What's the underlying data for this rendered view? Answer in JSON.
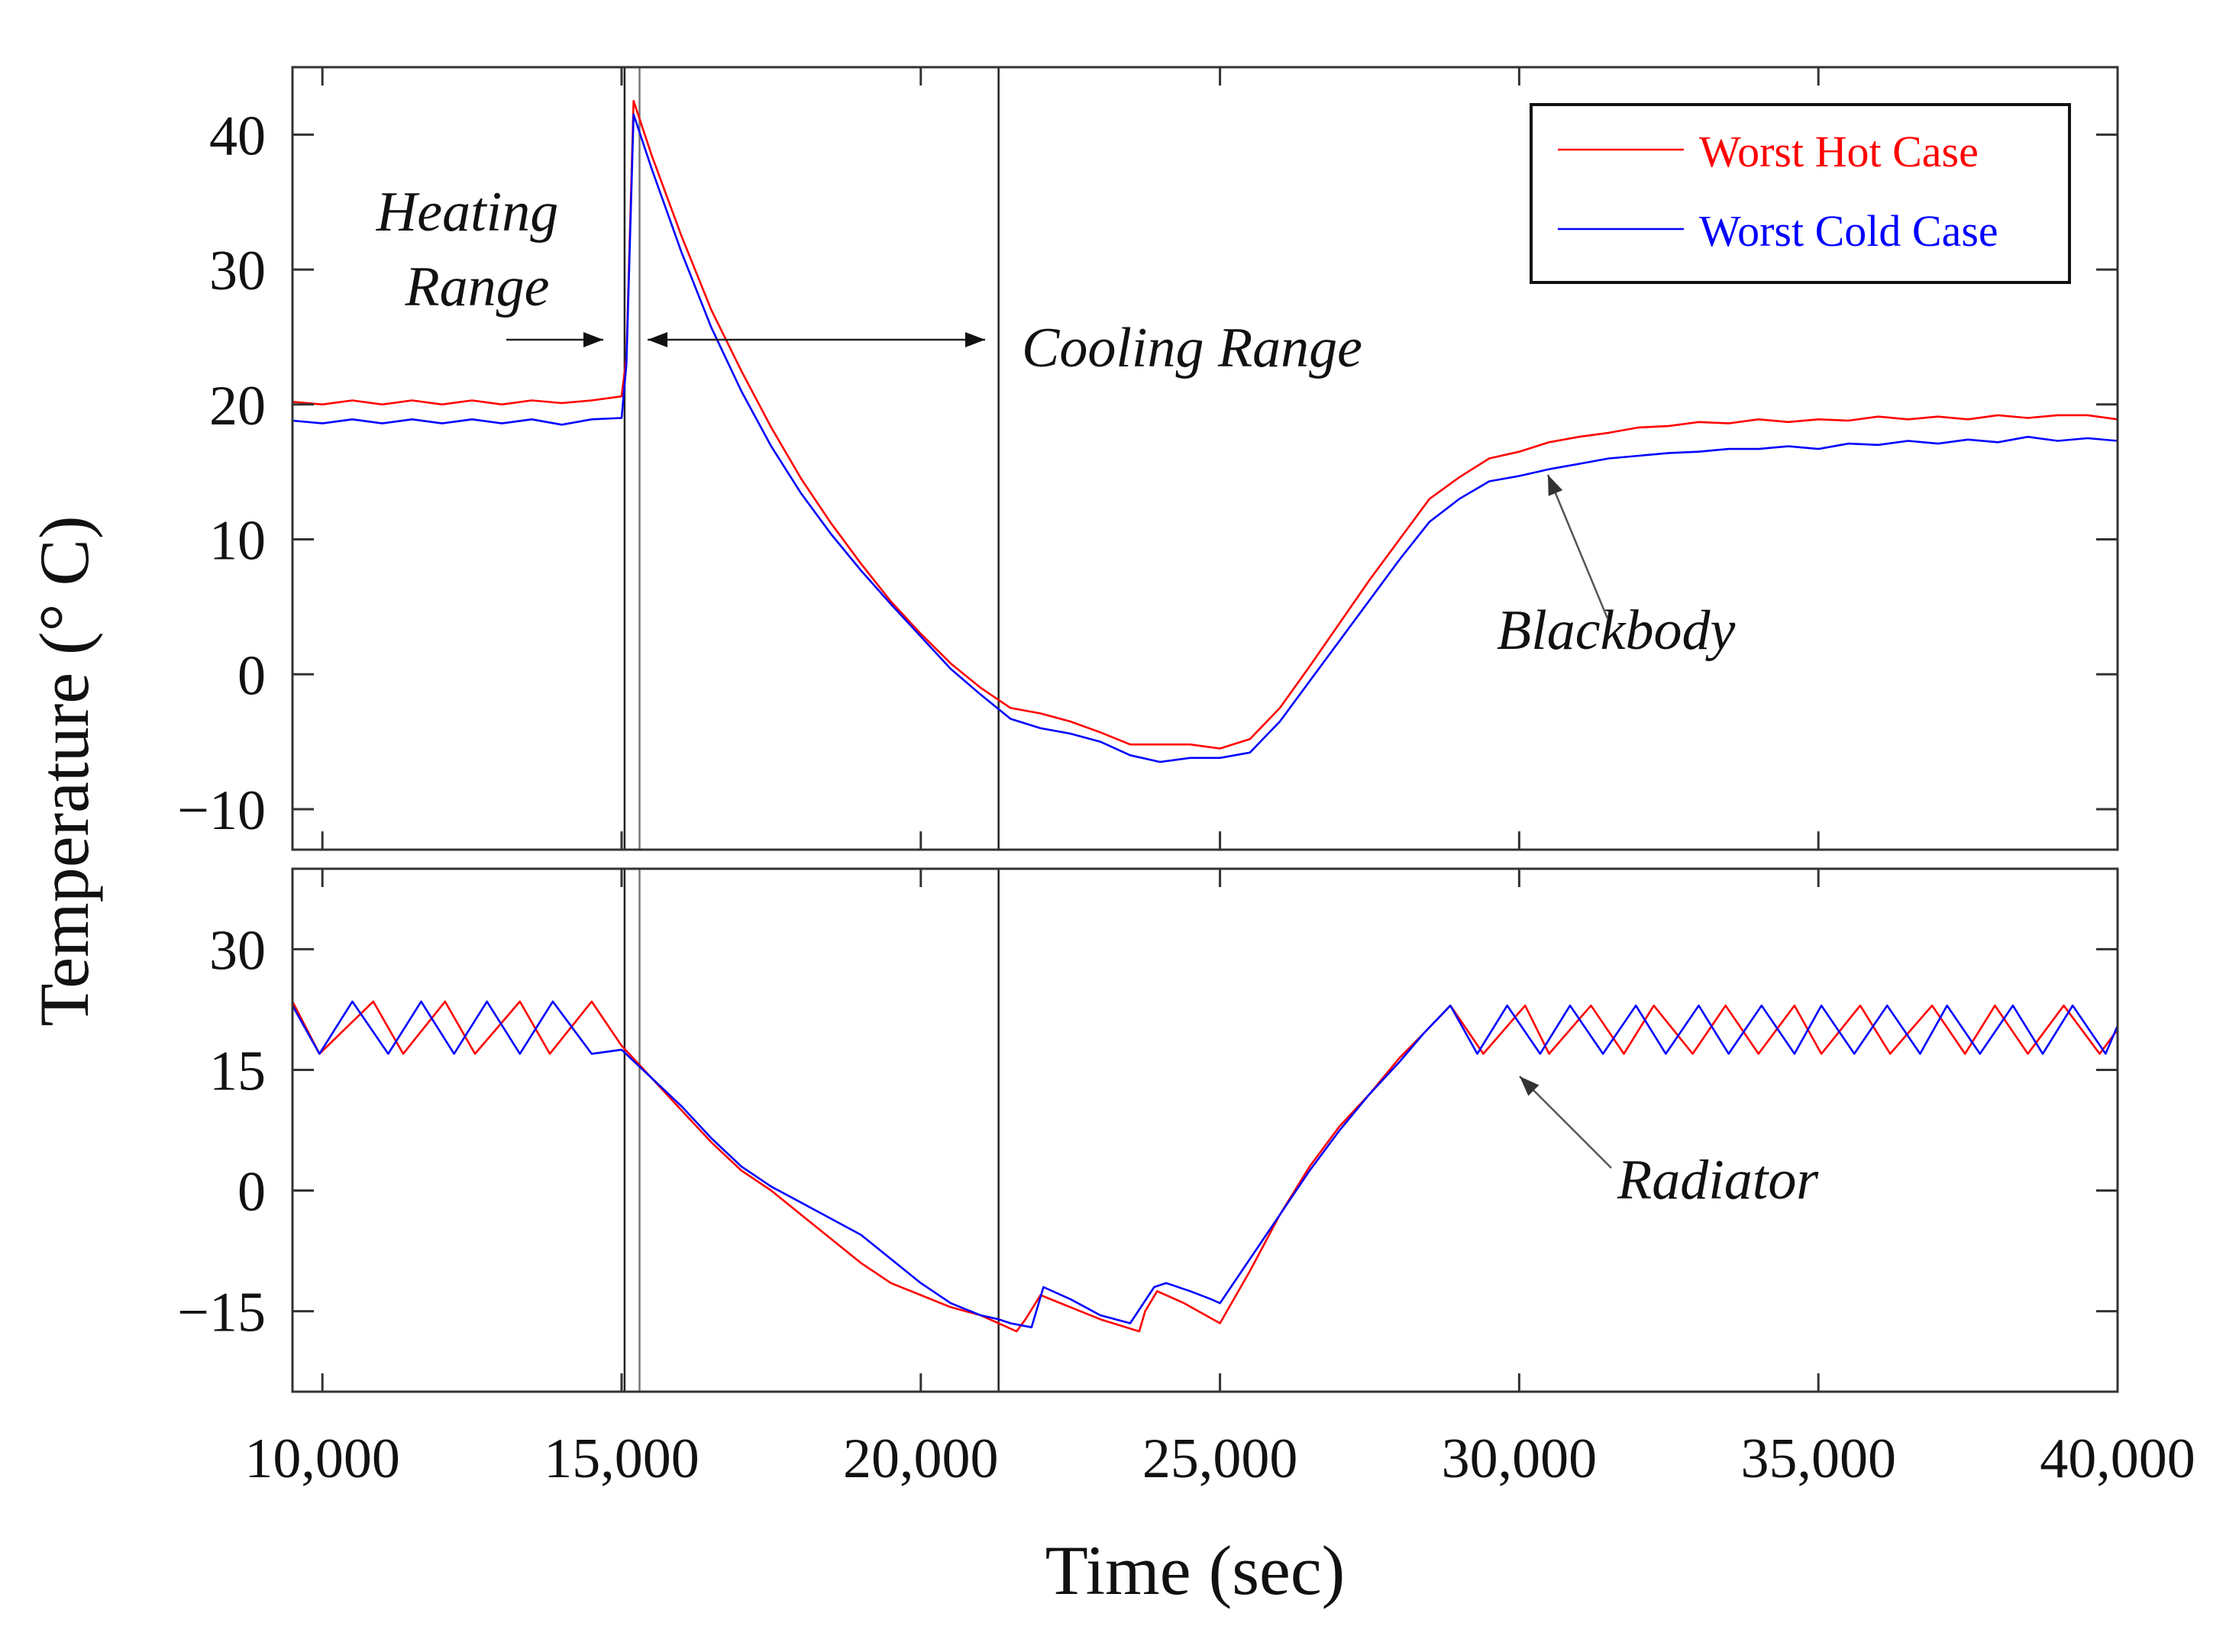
{
  "chart_data": {
    "type": "line",
    "xlabel": "Time (sec)",
    "ylabel": "Temperature (° C)",
    "x_ticks": [
      10000,
      15000,
      20000,
      25000,
      30000,
      35000,
      40000
    ],
    "x_tick_labels": [
      "10,000",
      "15,000",
      "20,000",
      "25,000",
      "30,000",
      "35,000",
      "40,000"
    ],
    "xlim": [
      9500,
      40000
    ],
    "legend": [
      {
        "name": "Worst Hot Case",
        "color": "#ff0000"
      },
      {
        "name": "Worst Cold Case",
        "color": "#0000ff"
      }
    ],
    "reference_lines_x": [
      {
        "x": 15050,
        "color": "#222222"
      },
      {
        "x": 15300,
        "color": "#777777"
      },
      {
        "x": 21300,
        "color": "#222222"
      }
    ],
    "panels": [
      {
        "name": "Blackbody",
        "ylim": [
          -13,
          45
        ],
        "y_ticks": [
          -10,
          0,
          10,
          20,
          30,
          40
        ],
        "y_tick_labels": [
          "−10",
          "0",
          "10",
          "20",
          "30",
          "40"
        ],
        "annotations": [
          {
            "text": "Heating",
            "x": 12500,
            "y": 34.5
          },
          {
            "text": "Range",
            "x": 12500,
            "y": 29
          },
          {
            "text": "Cooling Range",
            "x": 24000,
            "y": 23
          },
          {
            "text": "Blackbody",
            "x": 32300,
            "y": 3
          }
        ],
        "series": [
          {
            "name": "Worst Hot Case",
            "color": "#ff0000",
            "x": [
              9500,
              10000,
              10500,
              11000,
              11500,
              12000,
              12500,
              13000,
              13500,
              14000,
              14500,
              15000,
              15080,
              15200,
              15500,
              16000,
              16500,
              17000,
              17500,
              18000,
              18500,
              19000,
              19500,
              20000,
              20500,
              21000,
              21500,
              22000,
              22500,
              23000,
              23500,
              24000,
              24500,
              25000,
              25500,
              26000,
              26500,
              27000,
              27500,
              28000,
              28500,
              29000,
              29500,
              30000,
              30500,
              31000,
              31500,
              32000,
              32500,
              33000,
              33500,
              34000,
              34500,
              35000,
              35500,
              36000,
              36500,
              37000,
              37500,
              38000,
              38500,
              39000,
              39500,
              40000
            ],
            "values": [
              20.2,
              20.0,
              20.3,
              20.0,
              20.3,
              20.0,
              20.3,
              20.0,
              20.3,
              20.1,
              20.3,
              20.6,
              23.5,
              42.5,
              38.5,
              32.5,
              27.0,
              22.5,
              18.3,
              14.5,
              11.2,
              8.2,
              5.4,
              3.0,
              0.8,
              -1.0,
              -2.5,
              -2.9,
              -3.5,
              -4.3,
              -5.2,
              -5.2,
              -5.2,
              -5.5,
              -4.8,
              -2.5,
              0.6,
              3.8,
              7.0,
              10.0,
              13.0,
              14.6,
              16.0,
              16.5,
              17.2,
              17.6,
              17.9,
              18.3,
              18.4,
              18.7,
              18.6,
              18.9,
              18.7,
              18.9,
              18.8,
              19.1,
              18.9,
              19.1,
              18.9,
              19.2,
              19.0,
              19.2,
              19.2,
              18.9
            ]
          },
          {
            "name": "Worst Cold Case",
            "color": "#0000ff",
            "x": [
              9500,
              10000,
              10500,
              11000,
              11500,
              12000,
              12500,
              13000,
              13500,
              14000,
              14500,
              15000,
              15080,
              15200,
              15500,
              16000,
              16500,
              17000,
              17500,
              18000,
              18500,
              19000,
              19500,
              20000,
              20500,
              21000,
              21500,
              22000,
              22500,
              23000,
              23500,
              24000,
              24500,
              25000,
              25500,
              26000,
              26500,
              27000,
              27500,
              28000,
              28500,
              29000,
              29500,
              30000,
              30500,
              31000,
              31500,
              32000,
              32500,
              33000,
              33500,
              34000,
              34500,
              35000,
              35500,
              36000,
              36500,
              37000,
              37500,
              38000,
              38500,
              39000,
              39500,
              40000
            ],
            "values": [
              18.8,
              18.6,
              18.9,
              18.6,
              18.9,
              18.6,
              18.9,
              18.6,
              18.9,
              18.5,
              18.9,
              19.0,
              23.0,
              41.5,
              37.5,
              31.3,
              25.7,
              21.0,
              16.9,
              13.4,
              10.4,
              7.7,
              5.2,
              2.8,
              0.4,
              -1.5,
              -3.3,
              -4.0,
              -4.4,
              -5.0,
              -6.0,
              -6.5,
              -6.2,
              -6.2,
              -5.8,
              -3.5,
              -0.5,
              2.5,
              5.5,
              8.5,
              11.3,
              13.0,
              14.3,
              14.7,
              15.2,
              15.6,
              16.0,
              16.2,
              16.4,
              16.5,
              16.7,
              16.7,
              16.9,
              16.7,
              17.1,
              17.0,
              17.3,
              17.1,
              17.4,
              17.2,
              17.6,
              17.3,
              17.5,
              17.3
            ]
          }
        ]
      },
      {
        "name": "Radiator",
        "ylim": [
          -25,
          40
        ],
        "y_ticks": [
          -15,
          0,
          15,
          30
        ],
        "y_tick_labels": [
          "−15",
          "0",
          "15",
          "30"
        ],
        "annotations": [
          {
            "text": "Radiator",
            "x": 33100,
            "y": 1
          }
        ],
        "series": [
          {
            "name": "Worst Hot Case",
            "color": "#ff0000",
            "x": [
              9500,
              9950,
              10850,
              11350,
              12050,
              12550,
              13300,
              13800,
              14500,
              15000,
              15500,
              16000,
              16500,
              17000,
              17500,
              18000,
              18500,
              19000,
              19500,
              20000,
              20500,
              21000,
              21300,
              21600,
              21750,
              22000,
              22500,
              23000,
              23650,
              23750,
              23950,
              24400,
              25000,
              25500,
              26000,
              26500,
              27000,
              27500,
              28000,
              28400,
              28850,
              29400,
              30100,
              30500,
              31200,
              31750,
              32250,
              32900,
              33450,
              34000,
              34600,
              35050,
              35700,
              36200,
              36900,
              37450,
              37950,
              38500,
              39100,
              39700,
              40000
            ],
            "values": [
              23.5,
              17.0,
              23.5,
              17.0,
              23.5,
              17.0,
              23.5,
              17.0,
              23.5,
              18.0,
              14.0,
              10.0,
              6.0,
              2.5,
              0.0,
              -3.0,
              -6.0,
              -9.0,
              -11.5,
              -13.0,
              -14.5,
              -15.5,
              -16.5,
              -17.5,
              -16.0,
              -13.0,
              -14.5,
              -16.0,
              -17.5,
              -15.0,
              -12.5,
              -14.0,
              -16.5,
              -10.0,
              -3.0,
              3.0,
              8.0,
              12.0,
              16.5,
              19.5,
              23.0,
              17.0,
              23.0,
              17.0,
              23.0,
              17.0,
              23.0,
              17.0,
              23.0,
              17.0,
              23.0,
              17.0,
              23.0,
              17.0,
              23.0,
              17.0,
              23.0,
              17.0,
              23.0,
              17.0,
              20.0
            ]
          },
          {
            "name": "Worst Cold Case",
            "color": "#0000ff",
            "x": [
              9500,
              9950,
              10500,
              11100,
              11650,
              12200,
              12750,
              13300,
              13850,
              14500,
              15000,
              15500,
              16000,
              16500,
              17000,
              17500,
              18000,
              18500,
              19000,
              19500,
              20000,
              20500,
              21000,
              21300,
              21500,
              21850,
              22050,
              22500,
              23000,
              23500,
              23900,
              24100,
              24500,
              24850,
              25000,
              25500,
              26000,
              26500,
              27000,
              27500,
              28000,
              28400,
              28850,
              29300,
              29800,
              30350,
              30850,
              31400,
              31950,
              32450,
              33000,
              33500,
              34050,
              34600,
              35050,
              35600,
              36150,
              36700,
              37150,
              37700,
              38250,
              38750,
              39250,
              39800,
              40000
            ],
            "values": [
              23.0,
              17.0,
              23.5,
              17.0,
              23.5,
              17.0,
              23.5,
              17.0,
              23.5,
              17.0,
              17.5,
              14.0,
              10.5,
              6.5,
              3.0,
              0.5,
              -1.5,
              -3.5,
              -5.5,
              -8.5,
              -11.5,
              -14.0,
              -15.5,
              -16.0,
              -16.5,
              -17.0,
              -12.0,
              -13.5,
              -15.5,
              -16.5,
              -12.0,
              -11.5,
              -12.5,
              -13.5,
              -14.0,
              -8.5,
              -3.0,
              2.5,
              7.5,
              12.0,
              16.0,
              19.5,
              23.0,
              17.0,
              23.0,
              17.0,
              23.0,
              17.0,
              23.0,
              17.0,
              23.0,
              17.0,
              23.0,
              17.0,
              23.0,
              17.0,
              23.0,
              17.0,
              23.0,
              17.0,
              23.0,
              17.0,
              23.0,
              17.0,
              20.5
            ]
          }
        ]
      }
    ]
  }
}
